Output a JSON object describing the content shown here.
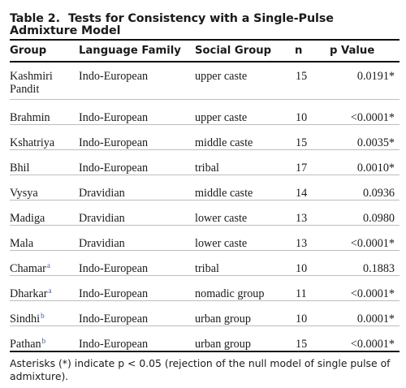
{
  "table": {
    "number": "Table 2.",
    "title": "Tests for Consistency with a Single-Pulse Admixture Model",
    "headers": {
      "group": "Group",
      "language_family": "Language Family",
      "social_group": "Social Group",
      "n": "n",
      "p_value": "p Value"
    },
    "rows": [
      {
        "group": "Kashmiri Pandit",
        "note": "",
        "language_family": "Indo-European",
        "social_group": "upper caste",
        "n": "15",
        "p_value": "0.0191*"
      },
      {
        "group": "Brahmin",
        "note": "",
        "language_family": "Indo-European",
        "social_group": "upper caste",
        "n": "10",
        "p_value": "<0.0001*"
      },
      {
        "group": "Kshatriya",
        "note": "",
        "language_family": "Indo-European",
        "social_group": "middle caste",
        "n": "15",
        "p_value": "0.0035*"
      },
      {
        "group": "Bhil",
        "note": "",
        "language_family": "Indo-European",
        "social_group": "tribal",
        "n": "17",
        "p_value": "0.0010*"
      },
      {
        "group": "Vysya",
        "note": "",
        "language_family": "Dravidian",
        "social_group": "middle caste",
        "n": "14",
        "p_value": "0.0936"
      },
      {
        "group": "Madiga",
        "note": "",
        "language_family": "Dravidian",
        "social_group": "lower caste",
        "n": "13",
        "p_value": "0.0980"
      },
      {
        "group": "Mala",
        "note": "",
        "language_family": "Dravidian",
        "social_group": "lower caste",
        "n": "13",
        "p_value": "<0.0001*"
      },
      {
        "group": "Chamar",
        "note": "a",
        "language_family": "Indo-European",
        "social_group": "tribal",
        "n": "10",
        "p_value": "0.1883"
      },
      {
        "group": "Dharkar",
        "note": "a",
        "language_family": "Indo-European",
        "social_group": "nomadic group",
        "n": "11",
        "p_value": "<0.0001*"
      },
      {
        "group": "Sindhi",
        "note": "b",
        "language_family": "Indo-European",
        "social_group": "urban group",
        "n": "10",
        "p_value": "0.0001*"
      },
      {
        "group": "Pathan",
        "note": "b",
        "language_family": "Indo-European",
        "social_group": "urban group",
        "n": "15",
        "p_value": "<0.0001*"
      }
    ],
    "footnote": "Asterisks (*) indicate p < 0.05 (rejection of the null model of single pulse of admixture)."
  }
}
